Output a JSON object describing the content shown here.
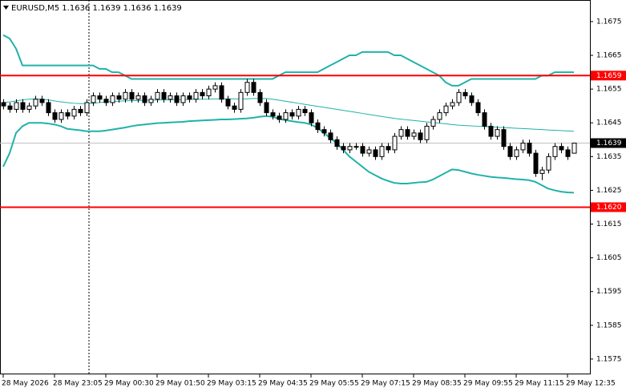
{
  "chart_data": {
    "type": "candlestick",
    "title": "EURUSD,M5  1.1636 1.1639 1.1636 1.1639",
    "categories": [
      "28 May 2026",
      null,
      null,
      null,
      null,
      null,
      null,
      null,
      "28 May 23:05",
      null,
      null,
      null,
      null,
      null,
      null,
      null,
      "29 May 00:30",
      null,
      null,
      null,
      null,
      null,
      null,
      null,
      "29 May 01:50",
      null,
      null,
      null,
      null,
      null,
      null,
      null,
      "29 May 03:15",
      null,
      null,
      null,
      null,
      null,
      null,
      null,
      "29 May 04:35",
      null,
      null,
      null,
      null,
      null,
      null,
      null,
      "29 May 05:55",
      null,
      null,
      null,
      null,
      null,
      null,
      null,
      "29 May 07:15",
      null,
      null,
      null,
      null,
      null,
      null,
      null,
      "29 May 08:35",
      null,
      null,
      null,
      null,
      null,
      null,
      null,
      "29 May 09:55",
      null,
      null,
      null,
      null,
      null,
      null,
      null,
      "29 May 11:15",
      null,
      null,
      null,
      null,
      null,
      null,
      null,
      "29 May 12:35",
      null
    ],
    "open": [
      1.1651,
      1.165,
      1.1649,
      1.1651,
      1.1649,
      1.165,
      1.1652,
      1.1651,
      1.1648,
      1.1646,
      1.1648,
      1.1647,
      1.1649,
      1.1648,
      1.1651,
      1.1653,
      1.1652,
      1.1651,
      1.1653,
      1.1652,
      1.1654,
      1.1652,
      1.1653,
      1.1651,
      1.1652,
      1.1654,
      1.1652,
      1.1653,
      1.1651,
      1.1653,
      1.1652,
      1.1654,
      1.1653,
      1.1655,
      1.1656,
      1.1652,
      1.165,
      1.1649,
      1.1654,
      1.1657,
      1.1654,
      1.1651,
      1.1648,
      1.1647,
      1.1646,
      1.1648,
      1.1647,
      1.1649,
      1.1648,
      1.1645,
      1.1643,
      1.1642,
      1.164,
      1.1638,
      1.1637,
      1.1638,
      1.1638,
      1.1636,
      1.1637,
      1.1635,
      1.1638,
      1.1637,
      1.1641,
      1.1643,
      1.1641,
      1.1642,
      1.164,
      1.1644,
      1.1646,
      1.1648,
      1.165,
      1.1651,
      1.1654,
      1.1653,
      1.1651,
      1.1648,
      1.1644,
      1.1641,
      1.1643,
      1.1638,
      1.1635,
      1.1637,
      1.1639,
      1.1636,
      1.163,
      1.1631,
      1.1635,
      1.1638,
      1.1637,
      1.1636
    ],
    "high": [
      1.1652,
      1.1651,
      1.1652,
      1.1652,
      1.1651,
      1.1653,
      1.1653,
      1.1652,
      1.1649,
      1.1649,
      1.1649,
      1.165,
      1.165,
      1.1652,
      1.1654,
      1.1654,
      1.1653,
      1.1654,
      1.1654,
      1.1655,
      1.1655,
      1.1654,
      1.1654,
      1.1653,
      1.1655,
      1.1655,
      1.1654,
      1.1654,
      1.1654,
      1.1654,
      1.1655,
      1.1655,
      1.1656,
      1.1657,
      1.1657,
      1.1653,
      1.1651,
      1.1655,
      1.1658,
      1.1658,
      1.1655,
      1.1652,
      1.1649,
      1.1648,
      1.1649,
      1.1649,
      1.165,
      1.165,
      1.1649,
      1.1646,
      1.1644,
      1.1643,
      1.1641,
      1.1639,
      1.1639,
      1.1639,
      1.1639,
      1.1638,
      1.1638,
      1.1639,
      1.1639,
      1.1642,
      1.1644,
      1.1644,
      1.1643,
      1.1643,
      1.1645,
      1.1647,
      1.1649,
      1.1651,
      1.1652,
      1.1655,
      1.1655,
      1.1654,
      1.1652,
      1.1649,
      1.1645,
      1.1644,
      1.1644,
      1.1639,
      1.1638,
      1.164,
      1.164,
      1.1637,
      1.1632,
      1.1636,
      1.1639,
      1.1639,
      1.1638,
      1.1639
    ],
    "low": [
      1.1649,
      1.1648,
      1.1648,
      1.1648,
      1.1648,
      1.1649,
      1.165,
      1.1647,
      1.1645,
      1.1645,
      1.1646,
      1.1646,
      1.1647,
      1.1647,
      1.165,
      1.1651,
      1.165,
      1.165,
      1.1651,
      1.1651,
      1.1651,
      1.1651,
      1.165,
      1.165,
      1.1651,
      1.1651,
      1.1651,
      1.165,
      1.165,
      1.1651,
      1.1651,
      1.1652,
      1.1652,
      1.1654,
      1.1651,
      1.1649,
      1.1648,
      1.1648,
      1.1653,
      1.1653,
      1.165,
      1.1647,
      1.1646,
      1.1645,
      1.1645,
      1.1646,
      1.1646,
      1.1647,
      1.1644,
      1.1642,
      1.1641,
      1.1639,
      1.1637,
      1.1636,
      1.1636,
      1.1637,
      1.1635,
      1.1635,
      1.1634,
      1.1634,
      1.1636,
      1.1636,
      1.164,
      1.164,
      1.164,
      1.1639,
      1.1639,
      1.1643,
      1.1645,
      1.1647,
      1.1649,
      1.165,
      1.1652,
      1.165,
      1.1647,
      1.1643,
      1.164,
      1.164,
      1.1637,
      1.1634,
      1.1634,
      1.1636,
      1.1635,
      1.1629,
      1.1628,
      1.163,
      1.1634,
      1.1636,
      1.1634,
      1.1636
    ],
    "close": [
      1.165,
      1.1649,
      1.1651,
      1.1649,
      1.165,
      1.1652,
      1.1651,
      1.1648,
      1.1646,
      1.1648,
      1.1647,
      1.1649,
      1.1648,
      1.1651,
      1.1653,
      1.1652,
      1.1651,
      1.1653,
      1.1652,
      1.1654,
      1.1652,
      1.1653,
      1.1651,
      1.1652,
      1.1654,
      1.1652,
      1.1653,
      1.1651,
      1.1653,
      1.1652,
      1.1654,
      1.1653,
      1.1655,
      1.1656,
      1.1652,
      1.165,
      1.1649,
      1.1654,
      1.1657,
      1.1654,
      1.1651,
      1.1648,
      1.1647,
      1.1646,
      1.1648,
      1.1647,
      1.1649,
      1.1648,
      1.1645,
      1.1643,
      1.1642,
      1.164,
      1.1638,
      1.1637,
      1.1638,
      1.1638,
      1.1636,
      1.1637,
      1.1635,
      1.1638,
      1.1637,
      1.1641,
      1.1643,
      1.1641,
      1.1642,
      1.164,
      1.1644,
      1.1646,
      1.1648,
      1.165,
      1.1651,
      1.1654,
      1.1653,
      1.1651,
      1.1648,
      1.1644,
      1.1641,
      1.1643,
      1.1638,
      1.1635,
      1.1637,
      1.1639,
      1.1636,
      1.163,
      1.1631,
      1.1635,
      1.1638,
      1.1637,
      1.1635,
      1.1639
    ],
    "bands": [
      {
        "color": "#20b2aa",
        "values": [
          1.1671,
          1.167,
          1.1667,
          1.1662,
          1.1662,
          1.1662,
          1.1662,
          1.1662,
          1.1662,
          1.1662,
          1.1662,
          1.1662,
          1.1662,
          1.1662,
          1.1662,
          1.1661,
          1.1661,
          1.166,
          1.166,
          1.1659,
          1.1658,
          1.1658,
          1.1658,
          1.1658,
          1.1658,
          1.1658,
          1.1658,
          1.1658,
          1.1658,
          1.1658,
          1.1658,
          1.1658,
          1.1658,
          1.1658,
          1.1658,
          1.1658,
          1.1658,
          1.1658,
          1.1658,
          1.1658,
          1.1658,
          1.1658,
          1.1658,
          1.1659,
          1.166,
          1.166,
          1.166,
          1.166,
          1.166,
          1.166,
          1.1661,
          1.1662,
          1.1663,
          1.1664,
          1.1665,
          1.1665,
          1.1666,
          1.1666,
          1.1666,
          1.1666,
          1.1666,
          1.1665,
          1.1665,
          1.1664,
          1.1663,
          1.1662,
          1.1661,
          1.166,
          1.1659,
          1.1657,
          1.1656,
          1.1656,
          1.1657,
          1.1658,
          1.1658,
          1.1658,
          1.1658,
          1.1658,
          1.1658,
          1.1658,
          1.1658,
          1.1658,
          1.1658,
          1.1658,
          1.1659,
          1.1659,
          1.166,
          1.166,
          1.166,
          1.166
        ]
      },
      {
        "color": "#20b2aa",
        "values": [
          1.1651,
          1.16512,
          1.16515,
          1.16518,
          1.1652,
          1.16521,
          1.1652,
          1.16518,
          1.16515,
          1.16512,
          1.1651,
          1.16508,
          1.16507,
          1.16507,
          1.16508,
          1.1651,
          1.16512,
          1.16513,
          1.16514,
          1.16515,
          1.16516,
          1.16516,
          1.16517,
          1.16517,
          1.16518,
          1.16518,
          1.16518,
          1.16519,
          1.16519,
          1.16519,
          1.1652,
          1.1652,
          1.1652,
          1.16521,
          1.16521,
          1.16521,
          1.16521,
          1.16521,
          1.16521,
          1.16522,
          1.16522,
          1.16522,
          1.1652,
          1.16517,
          1.16514,
          1.16511,
          1.16508,
          1.16505,
          1.16502,
          1.16499,
          1.16496,
          1.16493,
          1.1649,
          1.16487,
          1.16484,
          1.16481,
          1.16478,
          1.16475,
          1.16472,
          1.16469,
          1.16466,
          1.16463,
          1.16461,
          1.16459,
          1.16457,
          1.16455,
          1.16453,
          1.16451,
          1.16449,
          1.16447,
          1.16445,
          1.16443,
          1.16442,
          1.16441,
          1.1644,
          1.16439,
          1.16438,
          1.16437,
          1.16436,
          1.16435,
          1.16434,
          1.16433,
          1.16432,
          1.16431,
          1.1643,
          1.16429,
          1.16428,
          1.16427,
          1.16426,
          1.16425
        ]
      },
      {
        "color": "#20b2aa",
        "values": [
          1.1632,
          1.1636,
          1.1642,
          1.1644,
          1.1645,
          1.1645,
          1.1645,
          1.16448,
          1.16445,
          1.1644,
          1.16432,
          1.1643,
          1.16428,
          1.16425,
          1.16425,
          1.16425,
          1.16427,
          1.1643,
          1.16433,
          1.16436,
          1.1644,
          1.16443,
          1.16445,
          1.16447,
          1.16449,
          1.1645,
          1.16451,
          1.16452,
          1.16453,
          1.16455,
          1.16456,
          1.16457,
          1.16458,
          1.16459,
          1.1646,
          1.1646,
          1.16461,
          1.16462,
          1.16463,
          1.16465,
          1.16468,
          1.1647,
          1.16468,
          1.16462,
          1.16458,
          1.16455,
          1.16452,
          1.1645,
          1.16445,
          1.16435,
          1.1642,
          1.16405,
          1.1639,
          1.1637,
          1.1635,
          1.16335,
          1.1632,
          1.16305,
          1.16295,
          1.16285,
          1.16278,
          1.16272,
          1.1627,
          1.1627,
          1.16272,
          1.16274,
          1.16275,
          1.16282,
          1.16292,
          1.16302,
          1.16312,
          1.1631,
          1.16305,
          1.163,
          1.16296,
          1.16293,
          1.1629,
          1.16288,
          1.16287,
          1.16285,
          1.16283,
          1.16282,
          1.1628,
          1.16275,
          1.16265,
          1.16255,
          1.1625,
          1.16246,
          1.16244,
          1.16243
        ]
      }
    ],
    "levels": [
      {
        "value": 1.1659,
        "color": "#ff0000"
      },
      {
        "value": 1.162,
        "label": "1.1620",
        "color": "#ff0000"
      }
    ],
    "last": 1.1639,
    "ylim": [
      1.15707,
      1.16814
    ],
    "yticks": [
      1.1675,
      1.1665,
      1.1655,
      1.1645,
      1.1635,
      1.1625,
      1.1615,
      1.1605,
      1.1595,
      1.1585,
      1.1575
    ],
    "grid": false
  }
}
